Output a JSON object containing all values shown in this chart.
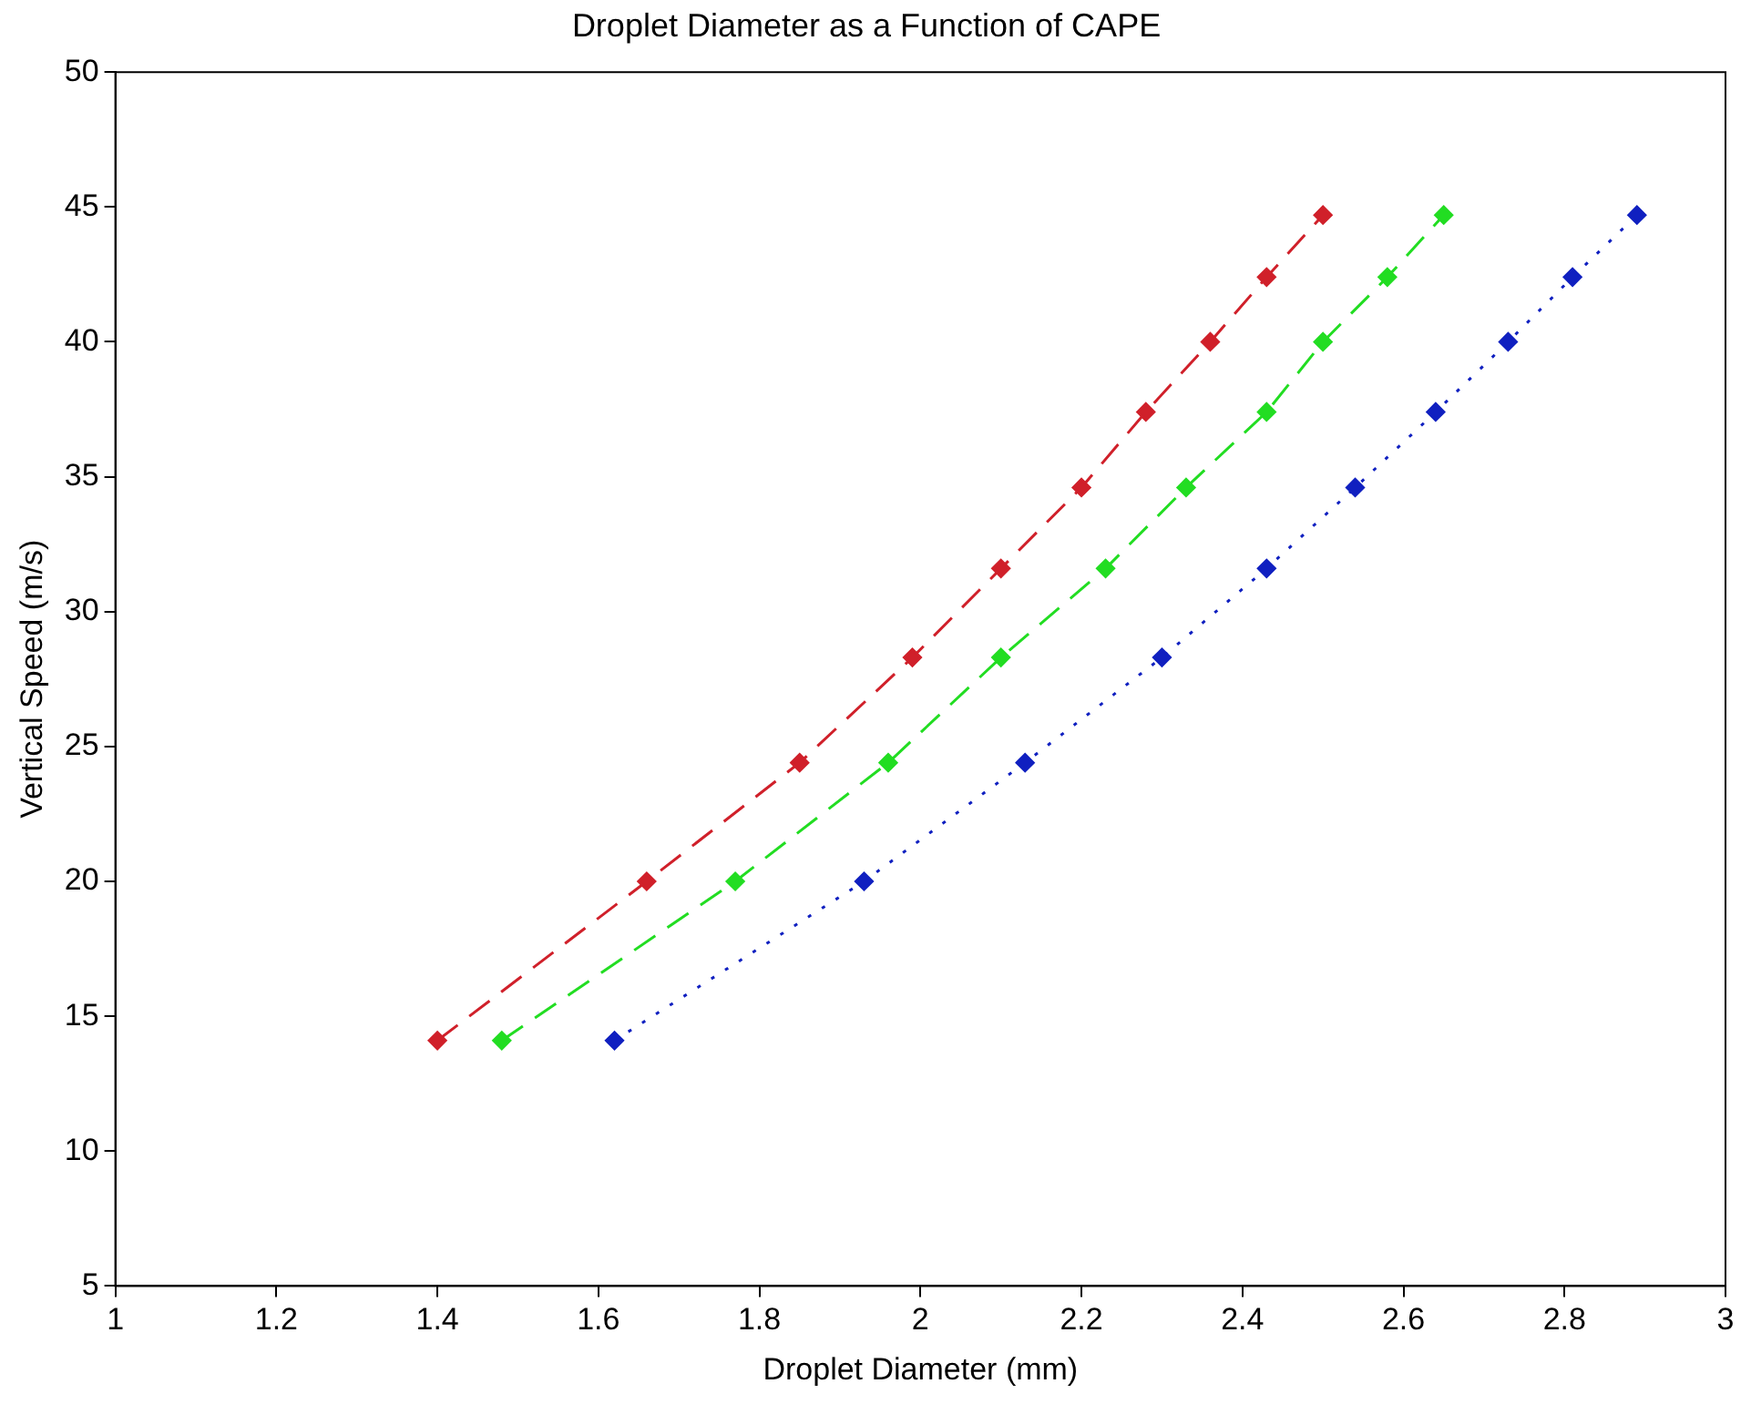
{
  "chart_data": {
    "type": "line",
    "title": "Droplet Diameter as a Function of CAPE",
    "xlabel": "Droplet Diameter (mm)",
    "ylabel": "Vertical Speed (m/s)",
    "xlim": [
      1,
      3
    ],
    "xticks": [
      1,
      1.2,
      1.4,
      1.6,
      1.8,
      2,
      2.2,
      2.4,
      2.6,
      2.8,
      3
    ],
    "ylim": [
      5,
      50
    ],
    "yticks": [
      5,
      10,
      15,
      20,
      25,
      30,
      35,
      40,
      45,
      50
    ],
    "grid": false,
    "legend": false,
    "marker": "diamond",
    "series": [
      {
        "color": "#d0202a",
        "line_style": "dashed",
        "x": [
          1.4,
          1.66,
          1.85,
          1.99,
          2.1,
          2.2,
          2.28,
          2.36,
          2.43,
          2.5
        ],
        "values": [
          14.1,
          20.0,
          24.4,
          28.3,
          31.6,
          34.6,
          37.4,
          40.0,
          42.4,
          44.7
        ]
      },
      {
        "color": "#22dd22",
        "line_style": "dashed",
        "x": [
          1.48,
          1.77,
          1.96,
          2.1,
          2.23,
          2.33,
          2.43,
          2.5,
          2.58,
          2.65
        ],
        "values": [
          14.1,
          20.0,
          24.4,
          28.3,
          31.6,
          34.6,
          37.4,
          40.0,
          42.4,
          44.7
        ]
      },
      {
        "color": "#1020c0",
        "line_style": "dotted",
        "x": [
          1.62,
          1.93,
          2.13,
          2.3,
          2.43,
          2.54,
          2.64,
          2.73,
          2.81,
          2.89
        ],
        "values": [
          14.1,
          20.0,
          24.4,
          28.3,
          31.6,
          34.6,
          37.4,
          40.0,
          42.4,
          44.7
        ]
      }
    ]
  }
}
